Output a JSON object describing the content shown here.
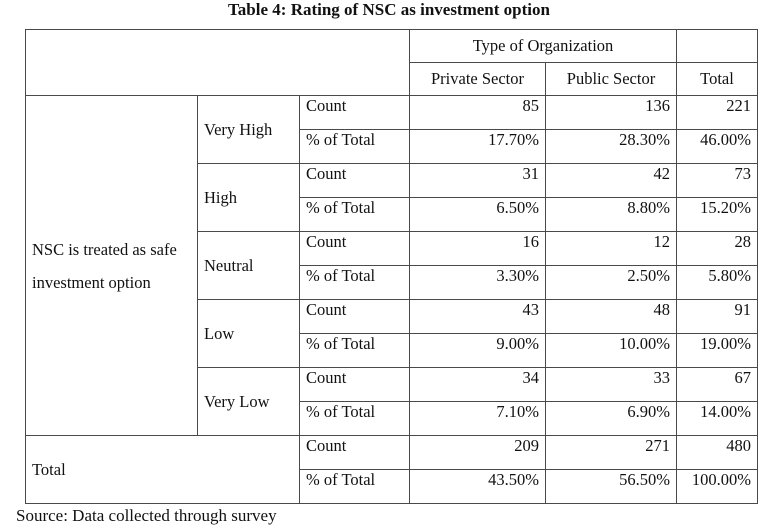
{
  "title": "Table 4: Rating of NSC as investment option",
  "header": {
    "group": "Type of Organization",
    "columns": [
      "Private Sector",
      "Public Sector",
      "Total"
    ]
  },
  "row_group_label": "NSC is treated as safe investment option",
  "measures": {
    "count": "Count",
    "pct": "% of Total"
  },
  "rows": [
    {
      "label": "Very High",
      "count": [
        "85",
        "136",
        "221"
      ],
      "pct": [
        "17.70%",
        "28.30%",
        "46.00%"
      ]
    },
    {
      "label": "High",
      "count": [
        "31",
        "42",
        "73"
      ],
      "pct": [
        "6.50%",
        "8.80%",
        "15.20%"
      ]
    },
    {
      "label": "Neutral",
      "count": [
        "16",
        "12",
        "28"
      ],
      "pct": [
        "3.30%",
        "2.50%",
        "5.80%"
      ]
    },
    {
      "label": "Low",
      "count": [
        "43",
        "48",
        "91"
      ],
      "pct": [
        "9.00%",
        "10.00%",
        "19.00%"
      ]
    },
    {
      "label": "Very Low",
      "count": [
        "34",
        "33",
        "67"
      ],
      "pct": [
        "7.10%",
        "6.90%",
        "14.00%"
      ]
    }
  ],
  "total": {
    "label": "Total",
    "count": [
      "209",
      "271",
      "480"
    ],
    "pct": [
      "43.50%",
      "56.50%",
      "100.00%"
    ]
  },
  "source": "Source: Data collected through survey"
}
